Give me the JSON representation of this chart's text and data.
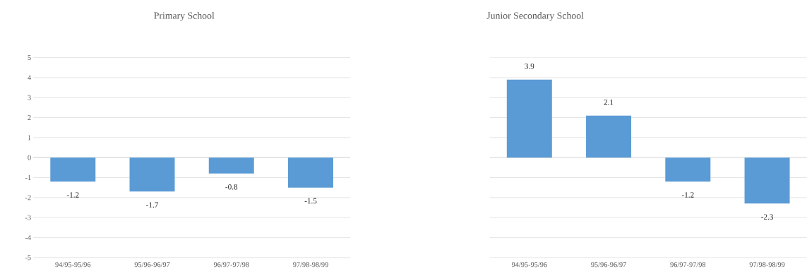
{
  "chart_data": [
    {
      "type": "bar",
      "title": "Primary School",
      "categories": [
        "94/95-95/96",
        "95/96-96/97",
        "96/97-97/98",
        "97/98-98/99"
      ],
      "values": [
        -1.2,
        -1.7,
        -0.8,
        -1.5
      ],
      "color": "#5b9bd5",
      "ylim": [
        -5,
        5
      ],
      "yticks": [
        -5,
        -4,
        -3,
        -2,
        -1,
        0,
        1,
        2,
        3,
        4,
        5
      ],
      "grid": "y",
      "data_labels": true
    },
    {
      "type": "bar",
      "title": "Junior Secondary School",
      "categories": [
        "94/95-95/96",
        "95/96-96/97",
        "96/97-97/98",
        "97/98-98/99"
      ],
      "values": [
        3.9,
        2.1,
        -1.2,
        -2.3
      ],
      "color": "#5b9bd5",
      "ylim": [
        -5,
        5
      ],
      "yticks": [
        -5,
        -4,
        -3,
        -2,
        -1,
        0,
        1,
        2,
        3,
        4,
        5
      ],
      "grid": "y",
      "data_labels": true,
      "tick_labels": "x"
    }
  ]
}
